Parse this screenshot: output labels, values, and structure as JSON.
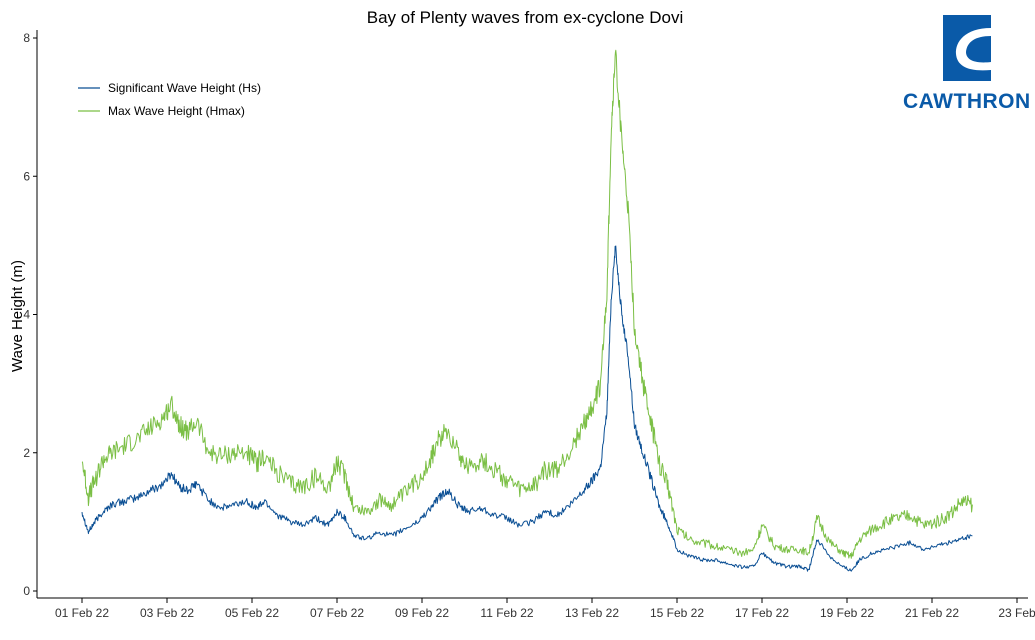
{
  "colors": {
    "hs": "#0b4f94",
    "hmax": "#7bbf45",
    "axis": "#000000",
    "brand": "#0a5aa8"
  },
  "logo": {
    "text": "CAWTHRON"
  },
  "chart_data": {
    "type": "line",
    "title": "Bay of Plenty waves from ex-cyclone Dovi",
    "xlabel": "",
    "ylabel": "Wave Height (m)",
    "ylim": [
      0,
      8
    ],
    "y_ticks": [
      0,
      2,
      4,
      6,
      8
    ],
    "x_ticks": [
      "01 Feb 22",
      "03 Feb 22",
      "05 Feb 22",
      "07 Feb 22",
      "09 Feb 22",
      "11 Feb 22",
      "13 Feb 22",
      "15 Feb 22",
      "17 Feb 22",
      "19 Feb 22",
      "21 Feb 22",
      "23 Feb"
    ],
    "x_tick_days": [
      1,
      3,
      5,
      7,
      9,
      11,
      13,
      15,
      17,
      19,
      21,
      23
    ],
    "xlim_days": [
      0.55,
      23.3
    ],
    "grid": false,
    "legend_position": "top-left",
    "series": [
      {
        "name": "Significant Wave Height (Hs)",
        "color_key": "hs",
        "x_days": [
          1.0,
          1.15,
          1.3,
          1.5,
          1.7,
          2.0,
          2.3,
          2.6,
          2.9,
          3.1,
          3.3,
          3.5,
          3.7,
          4.0,
          4.3,
          4.6,
          4.9,
          5.1,
          5.3,
          5.6,
          5.9,
          6.2,
          6.5,
          6.8,
          7.0,
          7.2,
          7.4,
          7.7,
          8.0,
          8.3,
          8.6,
          8.9,
          9.2,
          9.4,
          9.6,
          9.9,
          10.1,
          10.4,
          10.7,
          11.0,
          11.3,
          11.6,
          11.9,
          12.2,
          12.5,
          12.8,
          13.0,
          13.2,
          13.35,
          13.45,
          13.55,
          13.7,
          13.85,
          14.0,
          14.2,
          14.4,
          14.6,
          14.8,
          15.0,
          15.3,
          15.6,
          15.9,
          16.2,
          16.5,
          16.8,
          17.0,
          17.3,
          17.6,
          17.9,
          18.1,
          18.3,
          18.6,
          18.9,
          19.1,
          19.3,
          19.6,
          19.9,
          20.2,
          20.5,
          20.8,
          21.1,
          21.4,
          21.7,
          21.95
        ],
        "values": [
          1.15,
          0.85,
          1.0,
          1.15,
          1.25,
          1.3,
          1.35,
          1.45,
          1.55,
          1.7,
          1.5,
          1.45,
          1.55,
          1.3,
          1.2,
          1.25,
          1.3,
          1.2,
          1.3,
          1.1,
          1.0,
          0.95,
          1.05,
          0.95,
          1.15,
          1.05,
          0.8,
          0.75,
          0.85,
          0.8,
          0.9,
          1.0,
          1.2,
          1.35,
          1.45,
          1.2,
          1.15,
          1.2,
          1.1,
          1.05,
          0.95,
          1.0,
          1.15,
          1.1,
          1.25,
          1.45,
          1.6,
          1.8,
          2.6,
          4.2,
          5.0,
          4.0,
          3.4,
          2.4,
          2.0,
          1.6,
          1.2,
          0.95,
          0.6,
          0.5,
          0.45,
          0.45,
          0.4,
          0.35,
          0.35,
          0.55,
          0.4,
          0.35,
          0.35,
          0.3,
          0.75,
          0.5,
          0.35,
          0.3,
          0.45,
          0.55,
          0.6,
          0.65,
          0.7,
          0.6,
          0.65,
          0.7,
          0.75,
          0.8
        ]
      },
      {
        "name": "Max Wave Height (Hmax)",
        "color_key": "hmax",
        "x_days": [
          1.0,
          1.15,
          1.3,
          1.5,
          1.7,
          2.0,
          2.3,
          2.6,
          2.9,
          3.1,
          3.3,
          3.5,
          3.7,
          4.0,
          4.3,
          4.6,
          4.9,
          5.1,
          5.3,
          5.6,
          5.9,
          6.2,
          6.5,
          6.8,
          7.0,
          7.2,
          7.4,
          7.7,
          8.0,
          8.3,
          8.6,
          8.9,
          9.2,
          9.4,
          9.6,
          9.9,
          10.1,
          10.4,
          10.7,
          11.0,
          11.3,
          11.6,
          11.9,
          12.2,
          12.5,
          12.8,
          13.0,
          13.2,
          13.35,
          13.45,
          13.55,
          13.7,
          13.85,
          14.0,
          14.2,
          14.4,
          14.6,
          14.8,
          15.0,
          15.3,
          15.6,
          15.9,
          16.2,
          16.5,
          16.8,
          17.0,
          17.3,
          17.6,
          17.9,
          18.1,
          18.3,
          18.6,
          18.9,
          19.1,
          19.3,
          19.6,
          19.9,
          20.2,
          20.5,
          20.8,
          21.1,
          21.4,
          21.7,
          21.95
        ],
        "values": [
          1.9,
          1.35,
          1.6,
          1.9,
          2.0,
          2.1,
          2.2,
          2.35,
          2.5,
          2.7,
          2.4,
          2.3,
          2.45,
          2.0,
          1.95,
          2.0,
          2.0,
          1.85,
          1.95,
          1.7,
          1.55,
          1.5,
          1.65,
          1.5,
          1.85,
          1.65,
          1.2,
          1.15,
          1.3,
          1.25,
          1.4,
          1.6,
          1.9,
          2.2,
          2.35,
          1.95,
          1.8,
          1.9,
          1.75,
          1.6,
          1.45,
          1.5,
          1.75,
          1.75,
          2.05,
          2.4,
          2.65,
          3.0,
          4.3,
          6.6,
          7.8,
          6.5,
          5.5,
          3.8,
          3.0,
          2.4,
          1.8,
          1.5,
          0.9,
          0.75,
          0.7,
          0.65,
          0.6,
          0.55,
          0.6,
          0.95,
          0.65,
          0.6,
          0.6,
          0.55,
          1.05,
          0.7,
          0.55,
          0.5,
          0.75,
          0.9,
          1.0,
          1.05,
          1.1,
          0.95,
          1.0,
          1.1,
          1.3,
          1.25
        ]
      }
    ]
  }
}
